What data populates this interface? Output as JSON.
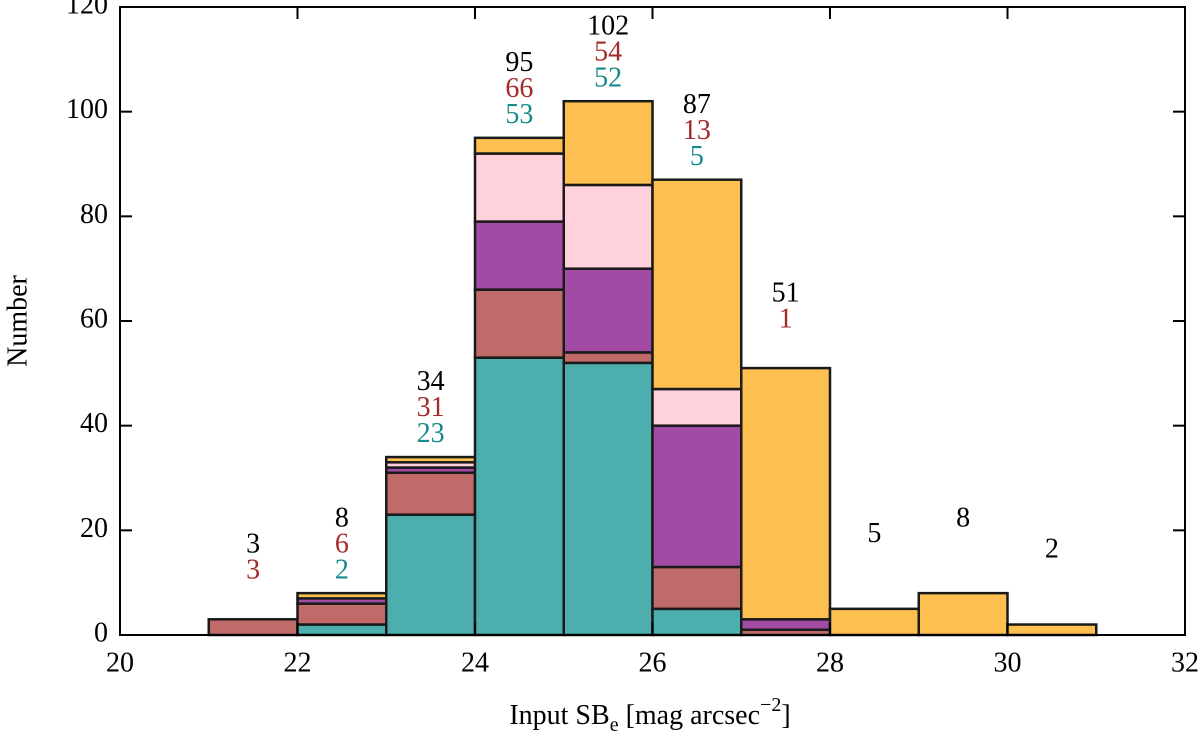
{
  "chart_data": {
    "type": "stacked-histogram",
    "xlabel": [
      "Input SB",
      "e",
      " [mag arcsec",
      "−2",
      "]"
    ],
    "ylabel": "Number",
    "bins": [
      21,
      22,
      23,
      24,
      25,
      26,
      27,
      28,
      29,
      30,
      31
    ],
    "series": [
      {
        "color": "#4daeae",
        "values": [
          0,
          2,
          23,
          53,
          52,
          5,
          0,
          0,
          0,
          0
        ]
      },
      {
        "color": "#c06a6a",
        "values": [
          3,
          4,
          8,
          13,
          2,
          8,
          1,
          0,
          0,
          0
        ]
      },
      {
        "color": "#a24ba4",
        "values": [
          0,
          1,
          1,
          13,
          16,
          27,
          2,
          0,
          0,
          0
        ]
      },
      {
        "color": "#ffd1dc",
        "values": [
          0,
          0,
          1,
          13,
          16,
          7,
          0,
          0,
          0,
          0
        ]
      },
      {
        "color": "#fdbf4f",
        "values": [
          0,
          1,
          1,
          3,
          16,
          40,
          48,
          5,
          8,
          2
        ]
      }
    ],
    "annotations": [
      {
        "color": "#000000",
        "values": [
          3,
          8,
          34,
          95,
          102,
          87,
          51,
          5,
          8,
          2
        ]
      },
      {
        "color": "#a52a2a",
        "values": [
          3,
          6,
          31,
          66,
          54,
          13,
          1,
          null,
          null,
          null
        ]
      },
      {
        "color": "#148a8a",
        "values": [
          null,
          2,
          23,
          53,
          52,
          5,
          null,
          null,
          null,
          null
        ]
      }
    ],
    "xlim": [
      20,
      32
    ],
    "xticks": [
      20,
      22,
      24,
      26,
      28,
      30,
      32
    ],
    "ylim": [
      0,
      120
    ],
    "yticks": [
      0,
      20,
      40,
      60,
      80,
      100,
      120
    ]
  }
}
